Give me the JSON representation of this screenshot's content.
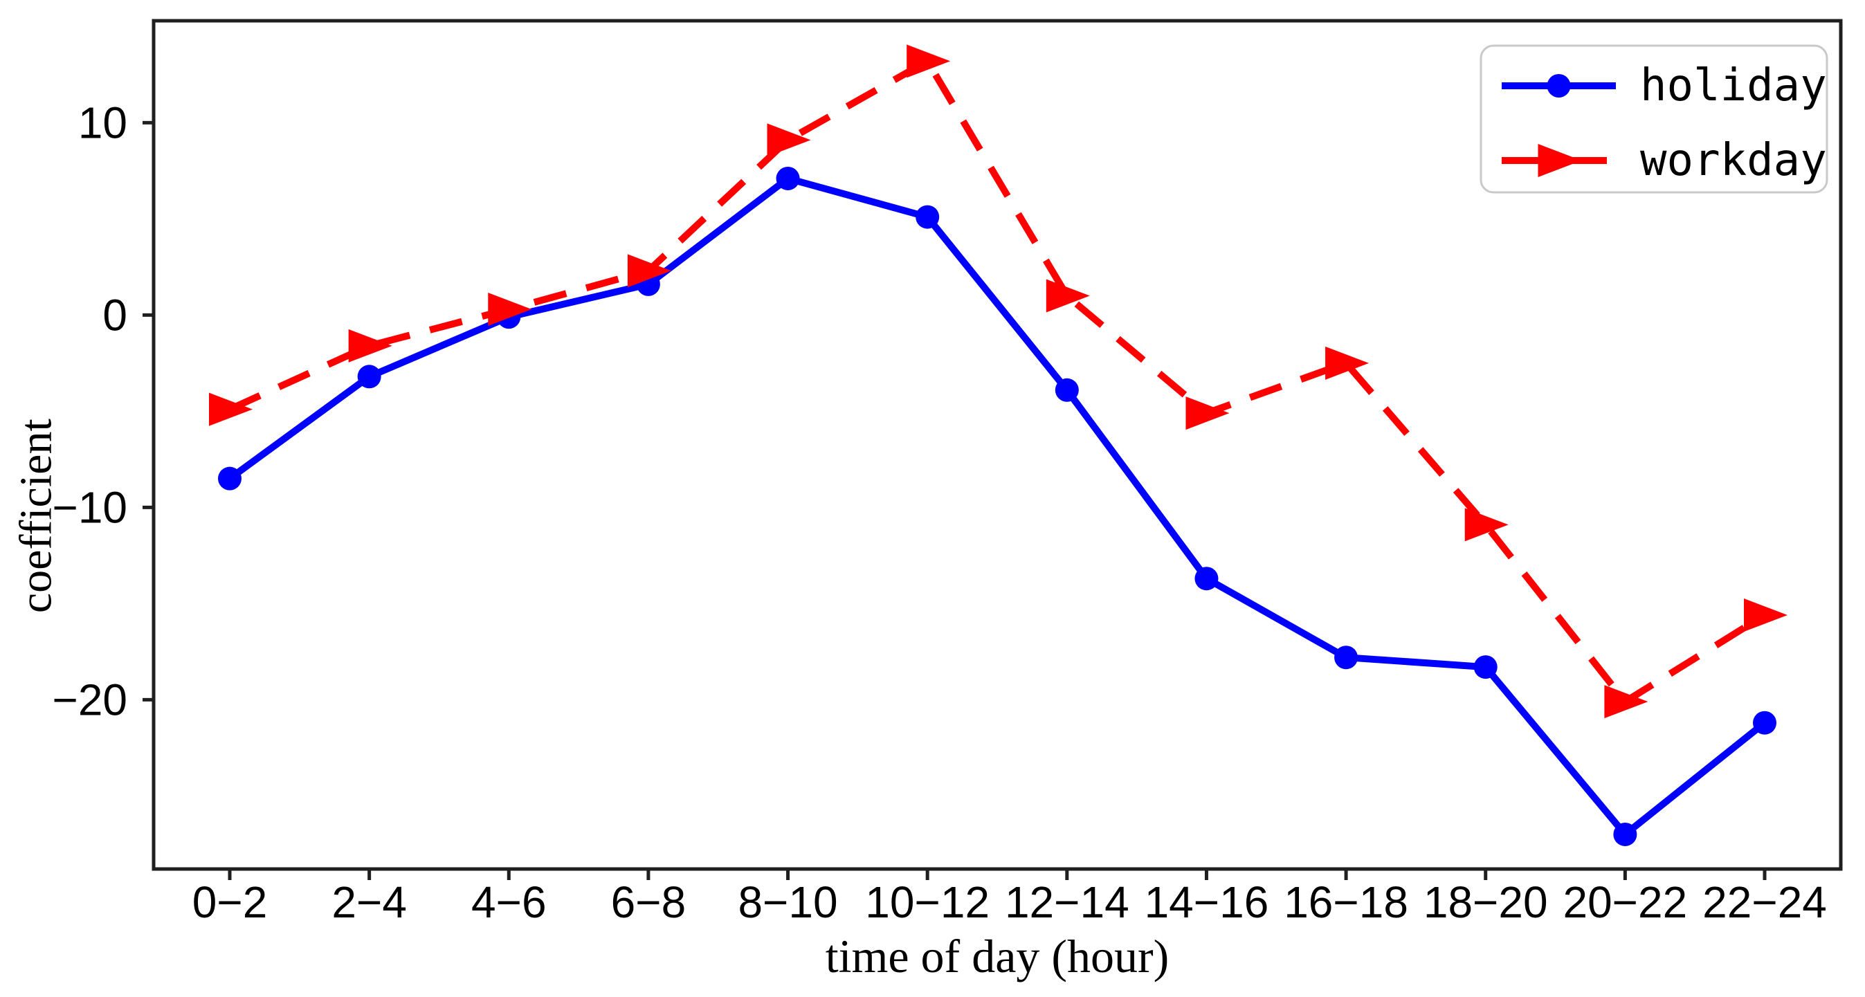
{
  "figure": {
    "background_color": "#ffffff",
    "axis_color": "#1f1f1f",
    "legend_border_color": "#c9c9c9"
  },
  "chart_data": {
    "type": "line",
    "title": "",
    "xlabel": "time of day (hour)",
    "ylabel": "coefficient",
    "categories": [
      "0−2",
      "2−4",
      "4−6",
      "6−8",
      "8−10",
      "10−12",
      "12−14",
      "14−16",
      "16−18",
      "18−20",
      "20−22",
      "22−24"
    ],
    "yticks": [
      10,
      0,
      -10,
      -20
    ],
    "ytick_labels": [
      "10",
      "0",
      "−10",
      "−20"
    ],
    "ylim": [
      -28.8,
      15.3
    ],
    "grid": false,
    "legend_position": "upper right",
    "series": [
      {
        "name": "holiday",
        "color": "#0000ff",
        "line_style": "solid",
        "marker": "circle",
        "values": [
          -8.5,
          -3.2,
          -0.1,
          1.6,
          7.1,
          5.1,
          -3.9,
          -13.7,
          -17.8,
          -18.3,
          -27.0,
          -21.2
        ]
      },
      {
        "name": "workday",
        "color": "#ff0000",
        "line_style": "dashed",
        "marker": "triangle-right",
        "values": [
          -4.9,
          -1.6,
          0.3,
          2.3,
          9.1,
          13.2,
          1.0,
          -5.1,
          -2.5,
          -10.9,
          -20.1,
          -15.6
        ]
      }
    ]
  }
}
